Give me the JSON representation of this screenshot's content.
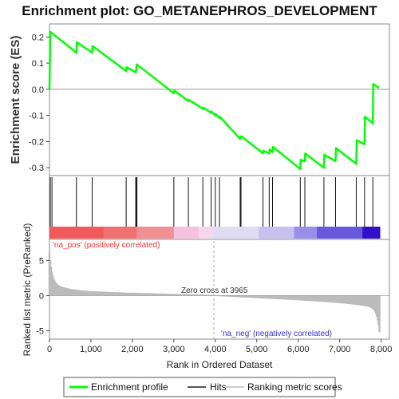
{
  "chart_data": {
    "title": "Enrichment plot: GO_METANEPHROS_DEVELOPMENT",
    "type": "line",
    "enrichment_panel": {
      "ylabel": "Enrichment score (ES)",
      "ylim": [
        -0.33,
        0.25
      ],
      "yticks": [
        "0.2",
        "0.1",
        "0.0",
        "-0.1",
        "-0.2",
        "-0.3"
      ],
      "ytick_values": [
        0.2,
        0.1,
        0.0,
        -0.1,
        -0.2,
        -0.3
      ],
      "series": [
        {
          "name": "Enrichment profile",
          "color": "#00ff00",
          "x": [
            0,
            20,
            650,
            660,
            1030,
            1040,
            1850,
            1860,
            2080,
            2090,
            2100,
            2110,
            3000,
            3010,
            3350,
            3360,
            3700,
            3710,
            3900,
            3910,
            4000,
            4010,
            4100,
            4110,
            4600,
            4610,
            4620,
            4630,
            5150,
            5160,
            5300,
            5310,
            5380,
            5390,
            6050,
            6060,
            6160,
            6170,
            6620,
            6630,
            6900,
            6910,
            7400,
            7410,
            7600,
            7610,
            7800,
            7810,
            7950
          ],
          "y": [
            0.0,
            0.22,
            0.14,
            0.18,
            0.14,
            0.165,
            0.07,
            0.085,
            0.065,
            0.075,
            0.09,
            0.095,
            -0.015,
            -0.005,
            -0.045,
            -0.04,
            -0.075,
            -0.07,
            -0.09,
            -0.085,
            -0.1,
            -0.095,
            -0.11,
            -0.105,
            -0.19,
            -0.18,
            -0.185,
            -0.18,
            -0.245,
            -0.235,
            -0.245,
            -0.23,
            -0.24,
            -0.22,
            -0.305,
            -0.27,
            -0.275,
            -0.245,
            -0.3,
            -0.25,
            -0.275,
            -0.225,
            -0.285,
            -0.195,
            -0.21,
            -0.105,
            -0.13,
            0.02,
            0.005
          ]
        }
      ]
    },
    "hits_panel": {
      "hit_positions": [
        20,
        60,
        650,
        1030,
        1850,
        2080,
        2100,
        2110,
        3000,
        3350,
        3700,
        3900,
        4000,
        4100,
        4600,
        4620,
        5150,
        5300,
        5380,
        6050,
        6160,
        6620,
        6900,
        7400,
        7600,
        7800
      ]
    },
    "rank_panel": {
      "ylabel": "Ranked list metric (PreRanked)",
      "ylim": [
        -6.2,
        8.0
      ],
      "yticks": [
        "5",
        "0",
        "-5"
      ],
      "ytick_values": [
        5,
        0,
        -5
      ],
      "xlabel": "Rank in Ordered Dataset",
      "xlim": [
        0,
        8200
      ],
      "xticks": [
        "0",
        "1,000",
        "2,000",
        "3,000",
        "4,000",
        "5,000",
        "6,000",
        "7,000",
        "8,000"
      ],
      "xtick_values": [
        0,
        1000,
        2000,
        3000,
        4000,
        5000,
        6000,
        7000,
        8000
      ],
      "n_genes": 7970,
      "zero_cross": 3965,
      "zero_cross_label": "Zero cross at 3965",
      "pos_label": "'na_pos' (positively correlated)",
      "neg_label": "'na_neg' (negatively correlated)"
    },
    "legend": {
      "placement": "bottom",
      "items": [
        {
          "label": "Enrichment profile",
          "color": "#00ff00"
        },
        {
          "label": "Hits",
          "color": "#000000"
        },
        {
          "label": "Ranking metric scores",
          "color": "#cccccc"
        }
      ]
    },
    "colors": {
      "profile": "#00ff00",
      "pos_region": "#f05a5a",
      "neg_region": "#3a2bd0",
      "bars": "#bbbbbb",
      "pos_text": "#ee3333",
      "neg_text": "#3333cc"
    }
  }
}
